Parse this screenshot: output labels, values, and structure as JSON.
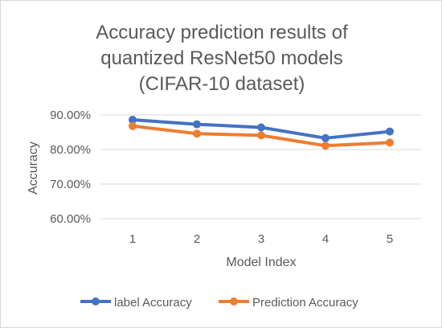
{
  "chart_data": {
    "type": "line",
    "title_lines": [
      "Accuracy prediction results of",
      "quantized ResNet50 models",
      "(CIFAR-10 dataset)"
    ],
    "xlabel": "Model Index",
    "ylabel": "Accuracy",
    "categories": [
      "1",
      "2",
      "3",
      "4",
      "5"
    ],
    "y_ticks": [
      60,
      70,
      80,
      90
    ],
    "y_tick_labels": [
      "60.00%",
      "70.00%",
      "80.00%",
      "90.00%"
    ],
    "ylim": [
      60,
      90
    ],
    "grid": true,
    "legend_position": "bottom",
    "series": [
      {
        "name": "label Accuracy",
        "color": "#4472c4",
        "values": [
          88.6,
          87.3,
          86.4,
          83.3,
          85.2
        ]
      },
      {
        "name": "Prediction Accuracy",
        "color": "#ed7d31",
        "values": [
          86.8,
          84.6,
          84.1,
          81.1,
          82.0
        ]
      }
    ]
  }
}
